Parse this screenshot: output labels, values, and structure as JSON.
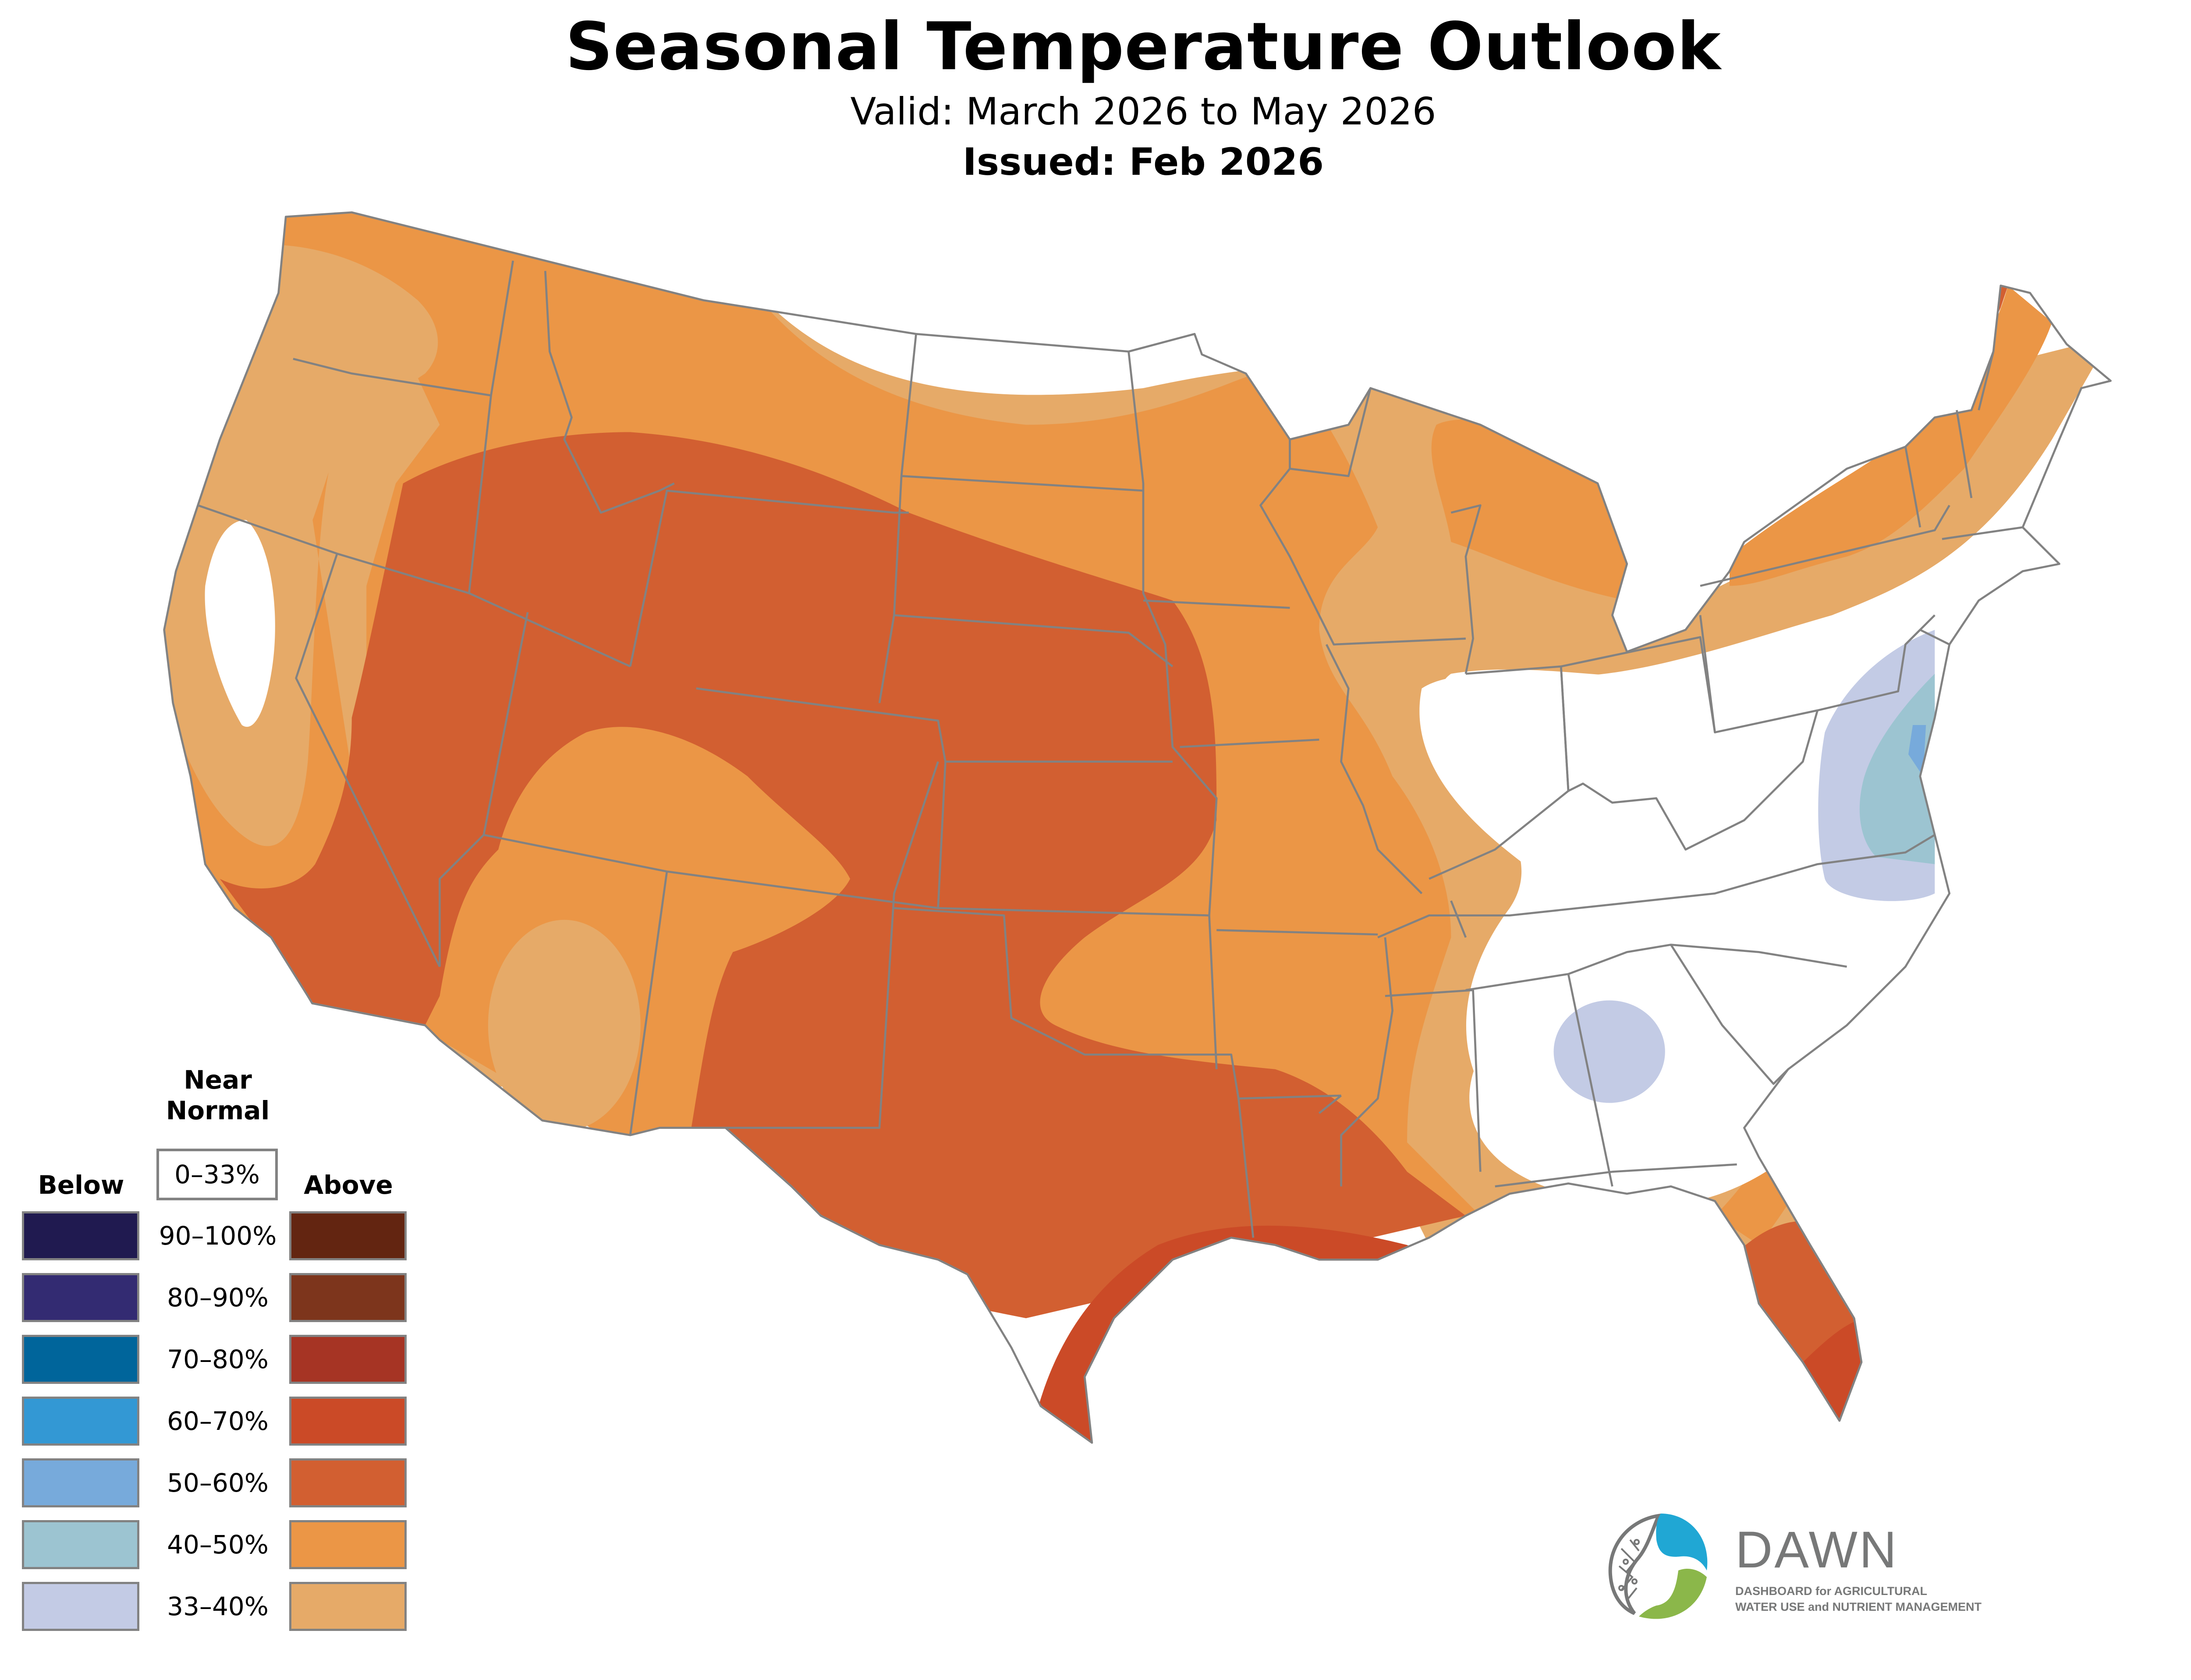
{
  "header": {
    "title": "Seasonal Temperature Outlook",
    "valid": "Valid: March 2026 to May 2026",
    "issued": "Issued: Feb 2026"
  },
  "legend": {
    "near_normal_label": "Near Normal",
    "near_normal_range": "0–33%",
    "near_normal_color": "#ffffff",
    "below_label": "Below",
    "above_label": "Above",
    "rows": [
      {
        "range": "90–100%",
        "below_color": "#201a50",
        "above_color": "#632511"
      },
      {
        "range": "80–90%",
        "below_color": "#332b72",
        "above_color": "#7d351c"
      },
      {
        "range": "70–80%",
        "below_color": "#00659b",
        "above_color": "#a63424"
      },
      {
        "range": "60–70%",
        "below_color": "#3398d4",
        "above_color": "#cb4a27"
      },
      {
        "range": "50–60%",
        "below_color": "#77aadb",
        "above_color": "#d25f31"
      },
      {
        "range": "40–50%",
        "below_color": "#9cc4d1",
        "above_color": "#eb9646"
      },
      {
        "range": "33–40%",
        "below_color": "#c3cbe5",
        "above_color": "#e6aa68"
      }
    ]
  },
  "map": {
    "border_color": "#828282",
    "regions": [
      {
        "name": "above-33-40",
        "category": "Above",
        "range": "33–40%",
        "color": "#e6aa68"
      },
      {
        "name": "above-40-50",
        "category": "Above",
        "range": "40–50%",
        "color": "#eb9646"
      },
      {
        "name": "above-50-60",
        "category": "Above",
        "range": "50–60%",
        "color": "#d25f31"
      },
      {
        "name": "above-60-70",
        "category": "Above",
        "range": "60–70%",
        "color": "#cb4a27"
      },
      {
        "name": "below-33-40",
        "category": "Below",
        "range": "33–40%",
        "color": "#c3cbe5"
      },
      {
        "name": "below-40-50",
        "category": "Below",
        "range": "40–50%",
        "color": "#9cc4d1"
      },
      {
        "name": "below-50-60",
        "category": "Below",
        "range": "50–60%",
        "color": "#77aadb"
      }
    ]
  },
  "logo": {
    "name": "DAWN",
    "tagline_line1": "DASHBOARD for AGRICULTURAL",
    "tagline_line2": "WATER USE and NUTRIENT MANAGEMENT",
    "blue": "#20a7d4",
    "green": "#8bb74a",
    "gray": "#777878"
  }
}
